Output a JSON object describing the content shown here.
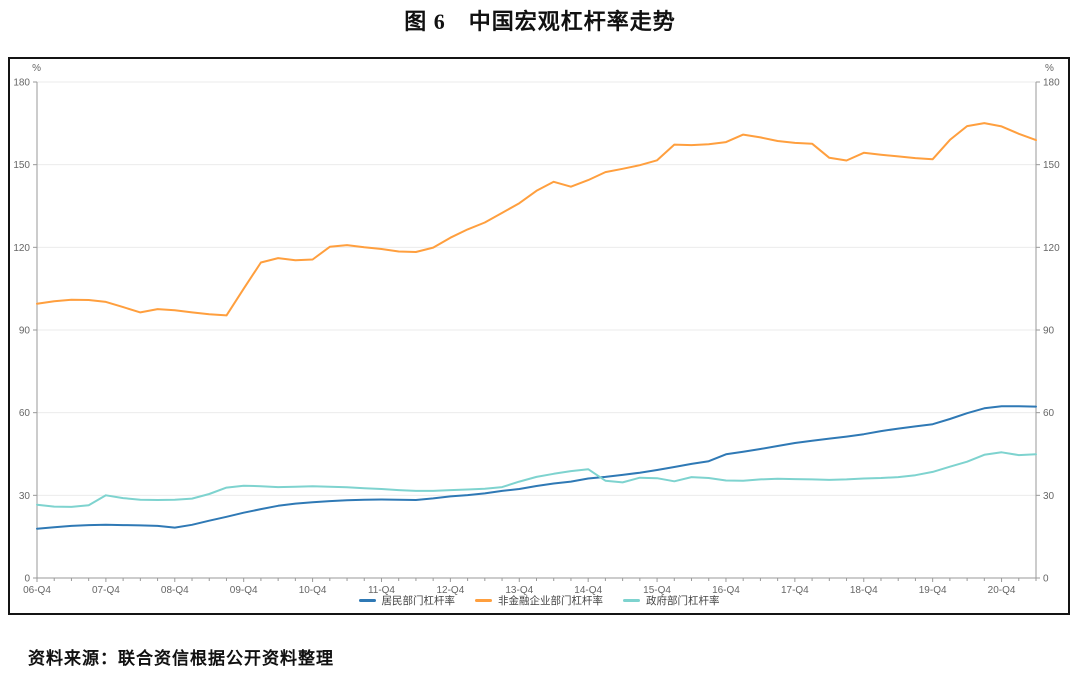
{
  "page": {
    "title": "图 6　中国宏观杠杆率走势",
    "source_note": "资料来源：联合资信根据公开资料整理"
  },
  "chart_data": {
    "type": "line",
    "unit_label": "%",
    "ylim": [
      0,
      180
    ],
    "ytick_step": 30,
    "y_ticks": [
      0,
      30,
      60,
      90,
      120,
      150,
      180
    ],
    "grid": true,
    "legend_position": "bottom",
    "x_label_every": 4,
    "x_tick_labels": [
      "06-Q4",
      "07-Q4",
      "08-Q4",
      "09-Q4",
      "10-Q4",
      "11-Q4",
      "12-Q4",
      "13-Q4",
      "14-Q4",
      "15-Q4",
      "16-Q4",
      "17-Q4",
      "18-Q4",
      "19-Q4",
      "20-Q4"
    ],
    "categories": [
      "06-Q4",
      "07-Q1",
      "07-Q2",
      "07-Q3",
      "07-Q4",
      "08-Q1",
      "08-Q2",
      "08-Q3",
      "08-Q4",
      "09-Q1",
      "09-Q2",
      "09-Q3",
      "09-Q4",
      "10-Q1",
      "10-Q2",
      "10-Q3",
      "10-Q4",
      "11-Q1",
      "11-Q2",
      "11-Q3",
      "11-Q4",
      "12-Q1",
      "12-Q2",
      "12-Q3",
      "12-Q4",
      "13-Q1",
      "13-Q2",
      "13-Q3",
      "13-Q4",
      "14-Q1",
      "14-Q2",
      "14-Q3",
      "14-Q4",
      "15-Q1",
      "15-Q2",
      "15-Q3",
      "15-Q4",
      "16-Q1",
      "16-Q2",
      "16-Q3",
      "16-Q4",
      "17-Q1",
      "17-Q2",
      "17-Q3",
      "17-Q4",
      "18-Q1",
      "18-Q2",
      "18-Q3",
      "18-Q4",
      "19-Q1",
      "19-Q2",
      "19-Q3",
      "19-Q4",
      "20-Q1",
      "20-Q2",
      "20-Q3",
      "20-Q4",
      "21-Q1",
      "21-Q2"
    ],
    "series": [
      {
        "key": "household",
        "name": "居民部门杠杆率",
        "color": "#2f79b5",
        "values": [
          17.9,
          18.4,
          18.9,
          19.2,
          19.3,
          19.2,
          19.1,
          18.9,
          18.3,
          19.3,
          20.8,
          22.2,
          23.7,
          25.0,
          26.2,
          27.0,
          27.5,
          27.9,
          28.2,
          28.4,
          28.5,
          28.4,
          28.3,
          28.9,
          29.6,
          30.1,
          30.7,
          31.6,
          32.3,
          33.4,
          34.3,
          35.0,
          36.1,
          36.7,
          37.4,
          38.2,
          39.2,
          40.3,
          41.4,
          42.4,
          44.9,
          45.8,
          46.8,
          47.9,
          49.0,
          49.8,
          50.6,
          51.3,
          52.2,
          53.3,
          54.2,
          55.0,
          55.8,
          57.7,
          59.8,
          61.6,
          62.3,
          62.3,
          62.2
        ]
      },
      {
        "key": "non-financial-corporate",
        "name": "非金融企业部门杠杆率",
        "color": "#ff9f3e",
        "values": [
          99.5,
          100.4,
          101.0,
          100.9,
          100.2,
          98.3,
          96.4,
          97.6,
          97.2,
          96.4,
          95.7,
          95.3,
          105.0,
          114.5,
          116.1,
          115.3,
          115.6,
          120.2,
          120.8,
          120.0,
          119.4,
          118.5,
          118.3,
          119.9,
          123.5,
          126.5,
          129.0,
          132.5,
          136.0,
          140.5,
          143.8,
          142.0,
          144.4,
          147.3,
          148.5,
          149.8,
          151.6,
          157.3,
          157.1,
          157.4,
          158.2,
          160.9,
          159.9,
          158.6,
          157.9,
          157.6,
          152.5,
          151.5,
          154.3,
          153.6,
          153.0,
          152.4,
          152.0,
          159.0,
          164.0,
          165.1,
          163.9,
          161.2,
          158.9
        ]
      },
      {
        "key": "government",
        "name": "政府部门杠杆率",
        "color": "#7ed3cf",
        "values": [
          26.6,
          25.9,
          25.8,
          26.4,
          30.0,
          29.0,
          28.4,
          28.3,
          28.4,
          28.8,
          30.5,
          32.8,
          33.5,
          33.3,
          33.0,
          33.1,
          33.3,
          33.1,
          32.9,
          32.6,
          32.3,
          31.9,
          31.6,
          31.6,
          31.9,
          32.1,
          32.4,
          33.0,
          35.0,
          36.7,
          37.8,
          38.8,
          39.5,
          35.3,
          34.7,
          36.4,
          36.2,
          35.1,
          36.6,
          36.3,
          35.4,
          35.3,
          35.8,
          36.0,
          35.9,
          35.8,
          35.6,
          35.8,
          36.1,
          36.3,
          36.6,
          37.3,
          38.5,
          40.4,
          42.2,
          44.7,
          45.6,
          44.6,
          44.9
        ]
      }
    ],
    "style": {
      "axis_color": "#9a9a9a",
      "grid_color": "#ebebeb",
      "tick_text_color": "#666666",
      "line_width": 2
    }
  }
}
